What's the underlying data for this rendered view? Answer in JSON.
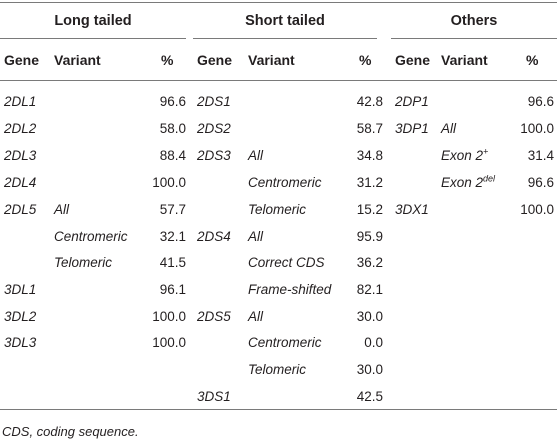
{
  "groups": [
    {
      "label": "Long tailed"
    },
    {
      "label": "Short tailed"
    },
    {
      "label": "Others"
    }
  ],
  "headers": {
    "gene": "Gene",
    "variant": "Variant",
    "pct": "%"
  },
  "long_tailed": [
    {
      "gene": "2DL1",
      "variant": "",
      "pct": "96.6"
    },
    {
      "gene": "2DL2",
      "variant": "",
      "pct": "58.0"
    },
    {
      "gene": "2DL3",
      "variant": "",
      "pct": "88.4"
    },
    {
      "gene": "2DL4",
      "variant": "",
      "pct": "100.0"
    },
    {
      "gene": "2DL5",
      "variant": "All",
      "pct": "57.7"
    },
    {
      "gene": "",
      "variant": "Centromeric",
      "pct": "32.1"
    },
    {
      "gene": "",
      "variant": "Telomeric",
      "pct": "41.5"
    },
    {
      "gene": "3DL1",
      "variant": "",
      "pct": "96.1"
    },
    {
      "gene": "3DL2",
      "variant": "",
      "pct": "100.0"
    },
    {
      "gene": "3DL3",
      "variant": "",
      "pct": "100.0"
    }
  ],
  "short_tailed": [
    {
      "gene": "2DS1",
      "variant": "",
      "pct": "42.8"
    },
    {
      "gene": "2DS2",
      "variant": "",
      "pct": "58.7"
    },
    {
      "gene": "2DS3",
      "variant": "All",
      "pct": "34.8"
    },
    {
      "gene": "",
      "variant": "Centromeric",
      "pct": "31.2"
    },
    {
      "gene": "",
      "variant": "Telomeric",
      "pct": "15.2"
    },
    {
      "gene": "2DS4",
      "variant": "All",
      "pct": "95.9"
    },
    {
      "gene": "",
      "variant": "Correct CDS",
      "pct": "36.2"
    },
    {
      "gene": "",
      "variant": "Frame-shifted",
      "pct": "82.1"
    },
    {
      "gene": "2DS5",
      "variant": "All",
      "pct": "30.0"
    },
    {
      "gene": "",
      "variant": "Centromeric",
      "pct": "0.0"
    },
    {
      "gene": "",
      "variant": "Telomeric",
      "pct": "30.0"
    },
    {
      "gene": "3DS1",
      "variant": "",
      "pct": "42.5"
    }
  ],
  "others": [
    {
      "gene": "2DP1",
      "variant": "",
      "variant_sup": "",
      "pct": "96.6"
    },
    {
      "gene": "3DP1",
      "variant": "All",
      "variant_sup": "",
      "pct": "100.0"
    },
    {
      "gene": "",
      "variant": "Exon 2",
      "variant_sup": "+",
      "pct": "31.4"
    },
    {
      "gene": "",
      "variant": "Exon 2",
      "variant_sup": "del",
      "pct": "96.6"
    },
    {
      "gene": "3DX1",
      "variant": "",
      "variant_sup": "",
      "pct": "100.0"
    }
  ],
  "footnote": "CDS, coding sequence."
}
